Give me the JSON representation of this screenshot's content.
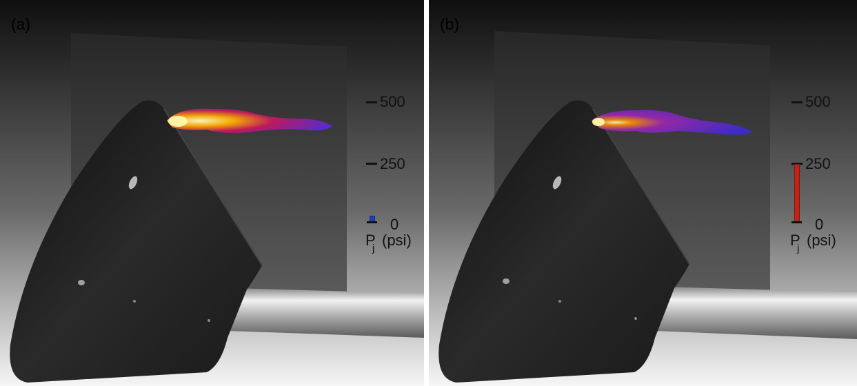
{
  "panels": [
    {
      "label": "(a)",
      "gauge": {
        "ticks": [
          "500",
          "250",
          "0"
        ],
        "max_psi": 500,
        "value_psi": 25,
        "bar_color": "#1f3fb8",
        "unit_symbol": "P",
        "unit_subscript": "j",
        "unit_label": "(psi)"
      }
    },
    {
      "label": "(b)",
      "gauge": {
        "ticks": [
          "500",
          "250",
          "0"
        ],
        "max_psi": 500,
        "value_psi": 240,
        "bar_color": "#c02418",
        "unit_symbol": "P",
        "unit_subscript": "j",
        "unit_label": "(psi)"
      }
    }
  ],
  "colors": {
    "background_top": "#0f0f0f",
    "background_bottom": "#f4f4f4",
    "back_panel": "#2e2e2e",
    "capsule": "#1e1e1e",
    "sting": "#c8c8c8",
    "plume_core": "#fff3a0",
    "plume_mid": "#c2185b",
    "plume_outer": "#5b2ad6"
  }
}
